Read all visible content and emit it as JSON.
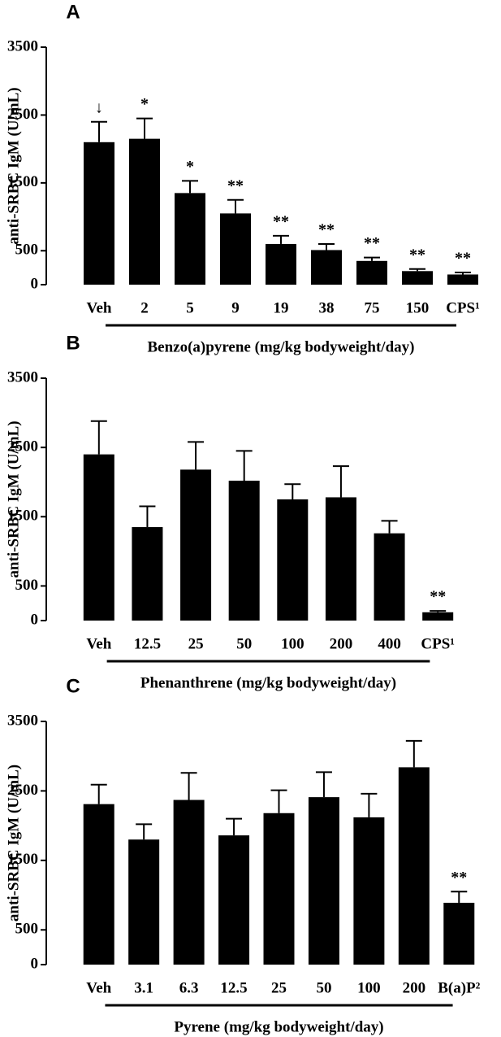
{
  "chart_data": [
    {
      "type": "bar",
      "panel": "A",
      "ylabel": "anti-SRBC IgM (U/mL)",
      "xlabel": "Benzo(a)pyrene (mg/kg bodyweight/day)",
      "categories": [
        "Veh",
        "2",
        "5",
        "9",
        "19",
        "38",
        "75",
        "150",
        "CPS¹"
      ],
      "values": [
        2100,
        2150,
        1350,
        1050,
        600,
        510,
        350,
        200,
        150
      ],
      "errors": [
        300,
        300,
        180,
        200,
        120,
        90,
        50,
        30,
        30
      ],
      "annotations": [
        "↓",
        "*",
        "*",
        "**",
        "**",
        "**",
        "**",
        "**",
        "**"
      ],
      "color": "#000000",
      "ylim": [
        0,
        3500
      ],
      "yticks": [
        0,
        500,
        1500,
        2500,
        3500
      ]
    },
    {
      "type": "bar",
      "panel": "B",
      "ylabel": "anti-SRBC IgM (U/mL)",
      "xlabel": "Phenanthrene (mg/kg bodyweight/day)",
      "categories": [
        "Veh",
        "12.5",
        "25",
        "50",
        "100",
        "200",
        "400",
        "CPS¹"
      ],
      "values": [
        2400,
        1350,
        2180,
        2020,
        1750,
        1780,
        1260,
        120
      ],
      "errors": [
        480,
        300,
        400,
        430,
        220,
        450,
        180,
        20
      ],
      "annotations": [
        null,
        null,
        null,
        null,
        null,
        null,
        null,
        "**"
      ],
      "color": "#000000",
      "ylim": [
        0,
        3500
      ],
      "yticks": [
        0,
        500,
        1500,
        2500,
        3500
      ]
    },
    {
      "type": "bar",
      "panel": "C",
      "ylabel": "anti-SRBC IgM (U/mL)",
      "xlabel": "Pyrene (mg/kg bodyweight/day)",
      "categories": [
        "Veh",
        "3.1",
        "6.3",
        "12.5",
        "25",
        "50",
        "100",
        "200",
        "B(a)P²"
      ],
      "values": [
        2310,
        1800,
        2370,
        1860,
        2180,
        2410,
        2120,
        2840,
        890
      ],
      "errors": [
        280,
        220,
        390,
        240,
        330,
        360,
        340,
        380,
        160
      ],
      "annotations": [
        null,
        null,
        null,
        null,
        null,
        null,
        null,
        null,
        "**"
      ],
      "color": "#000000",
      "ylim": [
        0,
        3500
      ],
      "yticks": [
        0,
        500,
        1500,
        2500,
        3500
      ]
    }
  ]
}
